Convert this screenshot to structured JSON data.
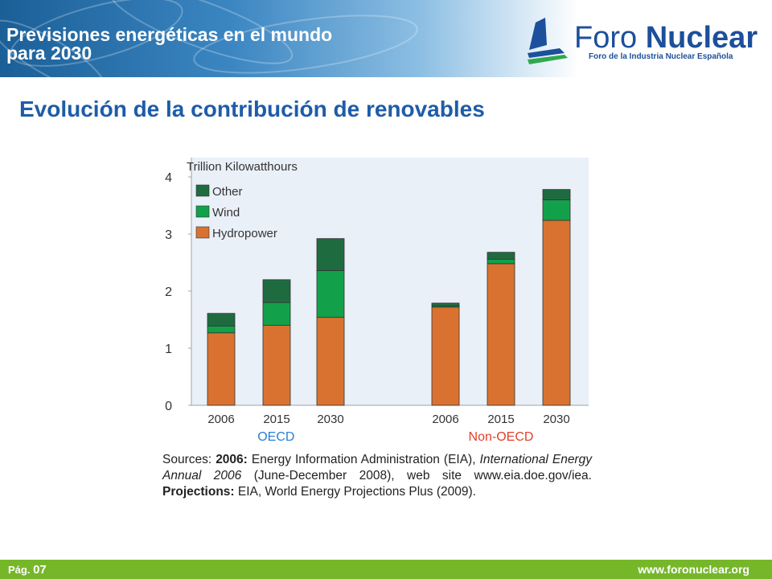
{
  "header": {
    "title_line1": "Previsiones energéticas en el mundo",
    "title_line2": "para 2030"
  },
  "logo": {
    "name_regular": "Foro ",
    "name_bold": "Nuclear",
    "subtitle": "Foro de la Industria Nuclear Española",
    "colors": {
      "blue": "#1c4f9c",
      "green": "#2fa84f"
    }
  },
  "slide": {
    "title": "Evolución de la contribución de renovables"
  },
  "chart_data": {
    "type": "bar",
    "stacked": true,
    "ylabel": "Trillion Kilowatthours",
    "ylim": [
      0,
      4
    ],
    "yticks": [
      "0",
      "1",
      "2",
      "3",
      "4"
    ],
    "categories": [
      "2006",
      "2015",
      "2030",
      "2006",
      "2015",
      "2030"
    ],
    "groups": [
      {
        "label": "OECD",
        "color": "#2a7fd4",
        "indices": [
          0,
          1,
          2
        ]
      },
      {
        "label": "Non-OECD",
        "color": "#e0402a",
        "indices": [
          3,
          4,
          5
        ]
      }
    ],
    "series": [
      {
        "name": "Hydropower",
        "color": "#d97230",
        "values": [
          1.27,
          1.4,
          1.54,
          1.72,
          2.48,
          3.24
        ]
      },
      {
        "name": "Wind",
        "color": "#12a14a",
        "values": [
          0.12,
          0.4,
          0.82,
          0.02,
          0.08,
          0.36
        ]
      },
      {
        "name": "Other",
        "color": "#1f6b40",
        "values": [
          0.22,
          0.4,
          0.56,
          0.05,
          0.12,
          0.18
        ]
      }
    ],
    "legend_position": "top-left",
    "legend_order": [
      "Other",
      "Wind",
      "Hydropower"
    ],
    "background": "#eaf0f8"
  },
  "sources": {
    "label": "Sources:",
    "y2006": "2006:",
    "eia_text": "Energy Information Administration (EIA),",
    "publication": "International Energy Annual 2006",
    "pub_date": "(June-December 2008),",
    "website": "web site www.eia.doe.gov/iea.",
    "projections_label": "Projections:",
    "projections_text": "EIA, World Energy Projections Plus (2009)."
  },
  "footer": {
    "page_label": "Pág.",
    "page_number": "07",
    "website": "www.foronuclear.org"
  }
}
